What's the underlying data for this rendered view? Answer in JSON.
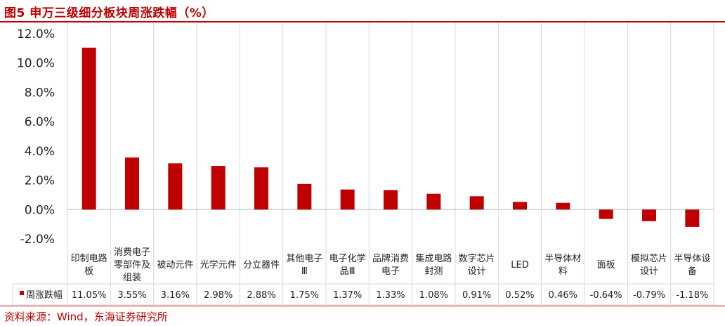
{
  "figure_title": "图5  申万三级细分板块周涨跌幅（%）",
  "source_note": "资料来源：Wind，东海证券研究所",
  "colors": {
    "bar": "#c00000",
    "accent": "#c00000"
  },
  "chart_data": {
    "type": "bar",
    "categories": [
      [
        "印制电路",
        "板"
      ],
      [
        "消费电子",
        "零部件及",
        "组装"
      ],
      [
        "被动元件"
      ],
      [
        "光学元件"
      ],
      [
        "分立器件"
      ],
      [
        "其他电子",
        "Ⅲ"
      ],
      [
        "电子化学",
        "品Ⅲ"
      ],
      [
        "品牌消费",
        "电子"
      ],
      [
        "集成电路",
        "封测"
      ],
      [
        "数字芯片",
        "设计"
      ],
      [
        "LED"
      ],
      [
        "半导体材",
        "料"
      ],
      [
        "面板"
      ],
      [
        "模拟芯片",
        "设计"
      ],
      [
        "半导体设",
        "备"
      ]
    ],
    "series": [
      {
        "name": "周涨跌幅",
        "values": [
          11.05,
          3.55,
          3.16,
          2.98,
          2.88,
          1.75,
          1.37,
          1.33,
          1.08,
          0.91,
          0.52,
          0.46,
          -0.64,
          -0.79,
          -1.18
        ],
        "labels": [
          "11.05%",
          "3.55%",
          "3.16%",
          "2.98%",
          "2.88%",
          "1.75%",
          "1.37%",
          "1.33%",
          "1.08%",
          "0.91%",
          "0.52%",
          "0.46%",
          "-0.64%",
          "-0.79%",
          "-1.18%"
        ]
      }
    ],
    "ylim": [
      -2,
      12
    ],
    "yticks": [
      "-2.0%",
      "0.0%",
      "2.0%",
      "4.0%",
      "6.0%",
      "8.0%",
      "10.0%",
      "12.0%"
    ],
    "grid": true,
    "legend": "data table, left"
  }
}
